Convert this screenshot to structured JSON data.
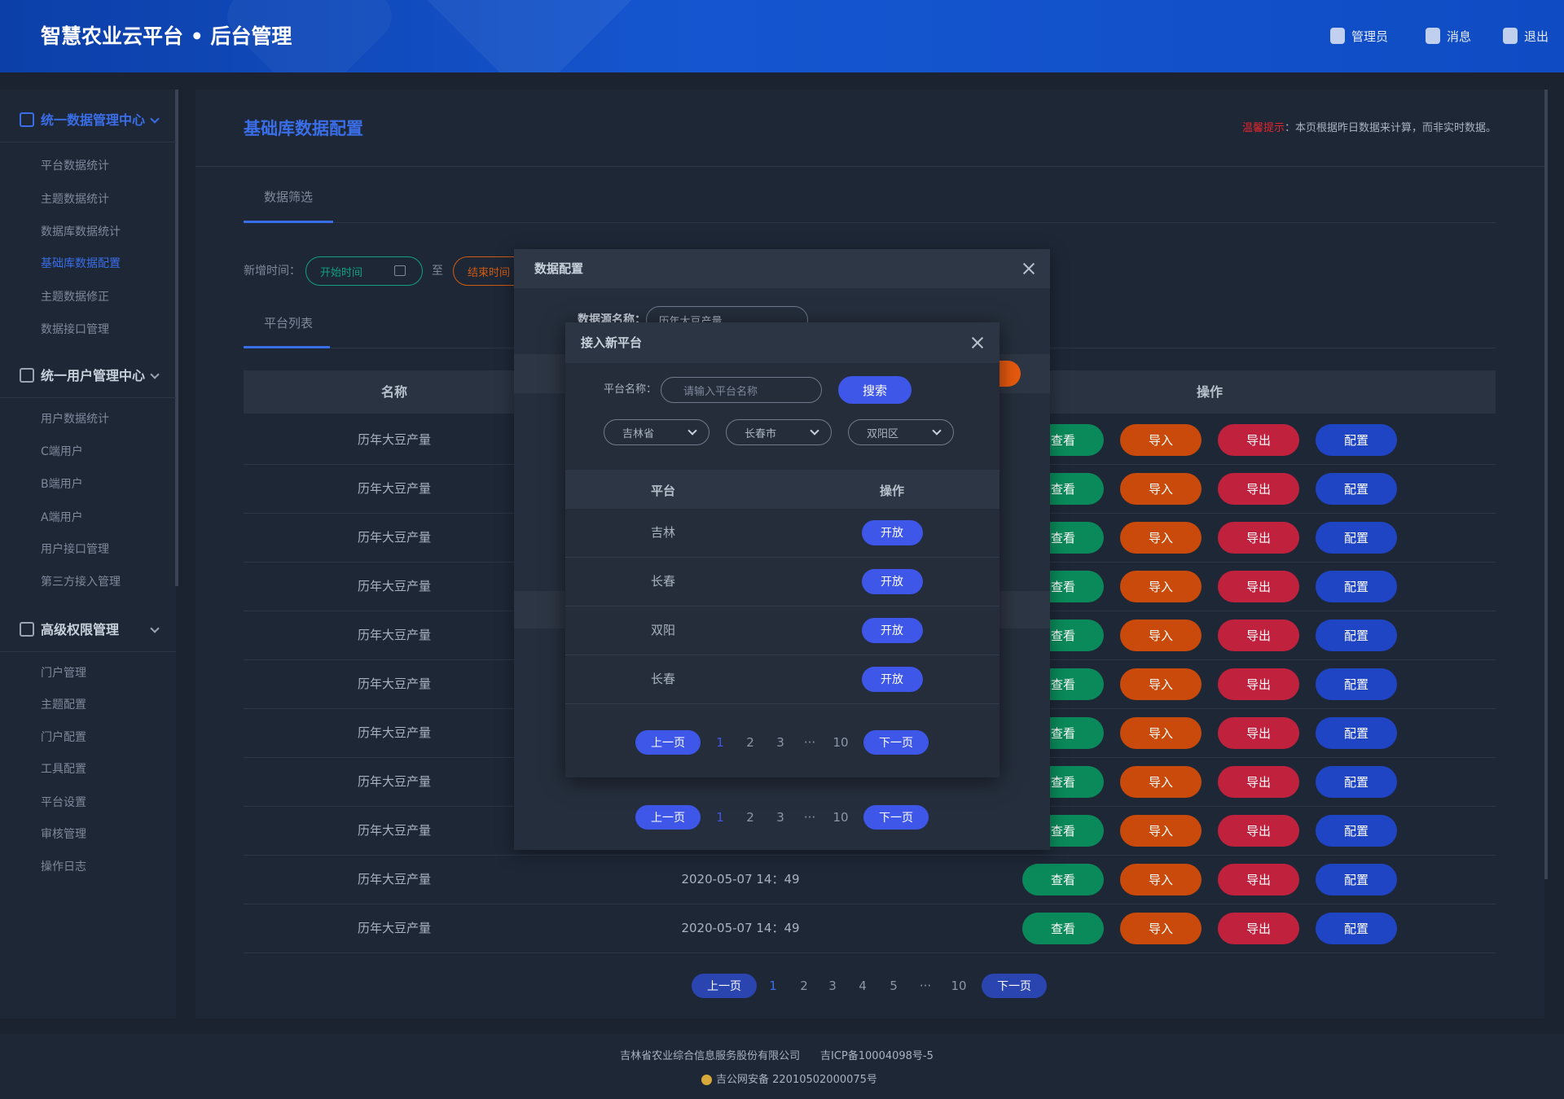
{
  "header": {
    "title": "智慧农业云平台 • 后台管理",
    "user": "管理员",
    "messages": "消息",
    "logout": "退出"
  },
  "sidebar": {
    "groups": [
      {
        "title": "统一数据管理中心",
        "items": [
          "平台数据统计",
          "主题数据统计",
          "数据库数据统计",
          "基础库数据配置",
          "主题数据修正",
          "数据接口管理"
        ]
      },
      {
        "title": "统一用户管理中心",
        "items": [
          "用户数据统计",
          "C端用户",
          "B端用户",
          "A端用户",
          "用户接口管理",
          "第三方接入管理"
        ]
      },
      {
        "title": "高级权限管理",
        "items": [
          "门户管理",
          "主题配置",
          "门户配置",
          "工具配置",
          "平台设置",
          "审核管理",
          "操作日志"
        ]
      }
    ]
  },
  "page": {
    "title": "基础库数据配置",
    "tip_label": "温馨提示",
    "tip_text": "：本页根据昨日数据来计算，而非实时数据。",
    "filter_tab": "数据筛选",
    "filter": {
      "label": "新增时间：",
      "start": "开始时间",
      "separator": "至",
      "end": "结束时间"
    },
    "list_tab": "平台列表",
    "table": {
      "columns": [
        "名称",
        "操作"
      ],
      "actions": [
        "查看",
        "导入",
        "导出",
        "配置"
      ],
      "rows": [
        {
          "name": "历年大豆产量"
        },
        {
          "name": "历年大豆产量"
        },
        {
          "name": "历年大豆产量"
        },
        {
          "name": "历年大豆产量"
        },
        {
          "name": "历年大豆产量"
        },
        {
          "name": "历年大豆产量"
        },
        {
          "name": "历年大豆产量"
        },
        {
          "name": "历年大豆产量"
        },
        {
          "name": "历年大豆产量"
        },
        {
          "name": "历年大豆产量",
          "time": "2020-05-07  14：49"
        },
        {
          "name": "历年大豆产量",
          "time": "2020-05-07  14：49"
        }
      ]
    },
    "pagination": {
      "prev": "上一页",
      "pages": [
        1,
        2,
        3,
        4,
        5,
        "···",
        10
      ],
      "next": "下一页"
    }
  },
  "modal_config": {
    "title": "数据配置",
    "field_label": "数据源名称：",
    "field_value": "历年大豆产量",
    "pagination": {
      "prev": "上一页",
      "pages": [
        1,
        2,
        3,
        "···",
        10
      ],
      "next": "下一页"
    }
  },
  "modal_platform": {
    "title": "接入新平台",
    "search_label": "平台名称：",
    "search_placeholder": "请输入平台名称",
    "search_button": "搜索",
    "selects": [
      "吉林省",
      "长春市",
      "双阳区"
    ],
    "columns": [
      "平台",
      "操作"
    ],
    "rows": [
      "吉林",
      "长春",
      "双阳",
      "长春"
    ],
    "action": "开放",
    "pagination": {
      "prev": "上一页",
      "pages": [
        1,
        2,
        3,
        "···",
        10
      ],
      "next": "下一页"
    }
  },
  "footer": {
    "company": "吉林省农业综合信息服务股份有限公司",
    "icp": "吉ICP备10004098号-5",
    "police": "吉公网安备 22010502000075号"
  }
}
